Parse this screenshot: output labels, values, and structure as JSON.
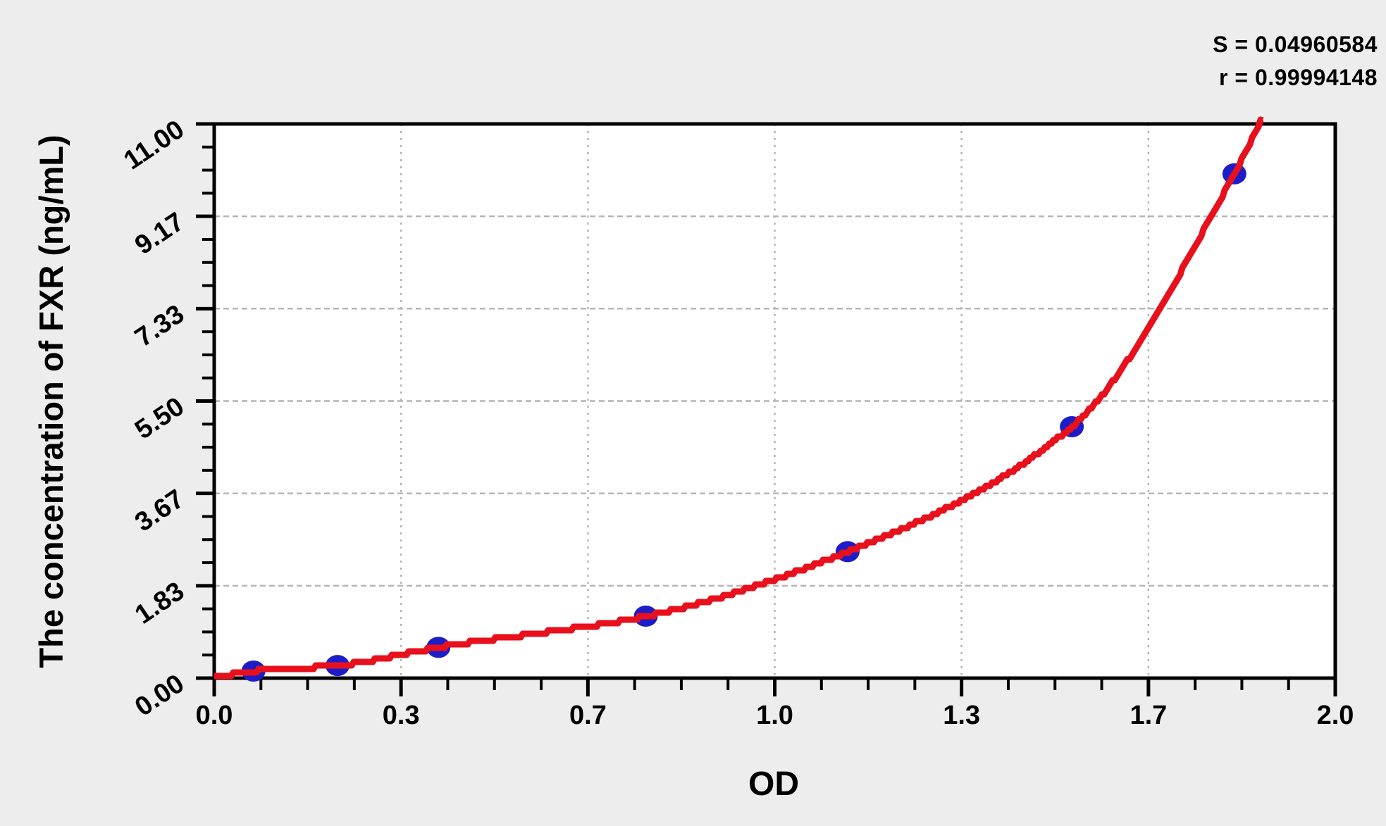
{
  "stats": {
    "s": "S = 0.04960584",
    "r": "r = 0.99994148"
  },
  "chart_data": {
    "type": "scatter",
    "title": "",
    "xlabel": "OD",
    "ylabel": "The concentration of FXR (ng/mL)",
    "xlim": [
      0.0,
      2.0
    ],
    "ylim": [
      0.0,
      11.0
    ],
    "x_tick_values": [
      0,
      0.3333,
      0.6667,
      1.0,
      1.3333,
      1.6667,
      2.0
    ],
    "x_tick_labels": [
      "0.0",
      "0.3",
      "0.7",
      "1.0",
      "1.3",
      "1.7",
      "2.0"
    ],
    "y_tick_values": [
      0,
      1.8333,
      3.6667,
      5.5,
      7.3333,
      9.1667,
      11.0
    ],
    "y_tick_labels": [
      "0.00",
      "1.83",
      "3.67",
      "5.50",
      "7.33",
      "9.17",
      "11.00"
    ],
    "minor_ticks_between_major": 3,
    "grid": true,
    "legend": "none",
    "series": [
      {
        "name": "standard-points",
        "type": "scatter",
        "color": "#1d1dc8",
        "x": [
          0.07,
          0.22,
          0.4,
          0.77,
          1.13,
          1.53,
          1.82
        ],
        "y": [
          0.14,
          0.25,
          0.61,
          1.23,
          2.51,
          4.99,
          10.01
        ]
      },
      {
        "name": "fitted-curve",
        "type": "line",
        "color": "#e8101c",
        "x": [
          0.0,
          0.07,
          0.22,
          0.4,
          0.77,
          1.13,
          1.53,
          1.82,
          1.877
        ],
        "y": [
          0.02,
          0.14,
          0.25,
          0.61,
          1.23,
          2.51,
          4.99,
          10.01,
          11.3
        ]
      }
    ],
    "annotations": [
      {
        "text": "S = 0.04960584",
        "position": "top-right"
      },
      {
        "text": "r = 0.99994148",
        "position": "top-right"
      }
    ],
    "colors": {
      "canvas_bg": "#ededed",
      "plot_bg": "#ffffff",
      "frame": "#000000",
      "grid": "#b4b4b4",
      "text": "#000000"
    }
  }
}
